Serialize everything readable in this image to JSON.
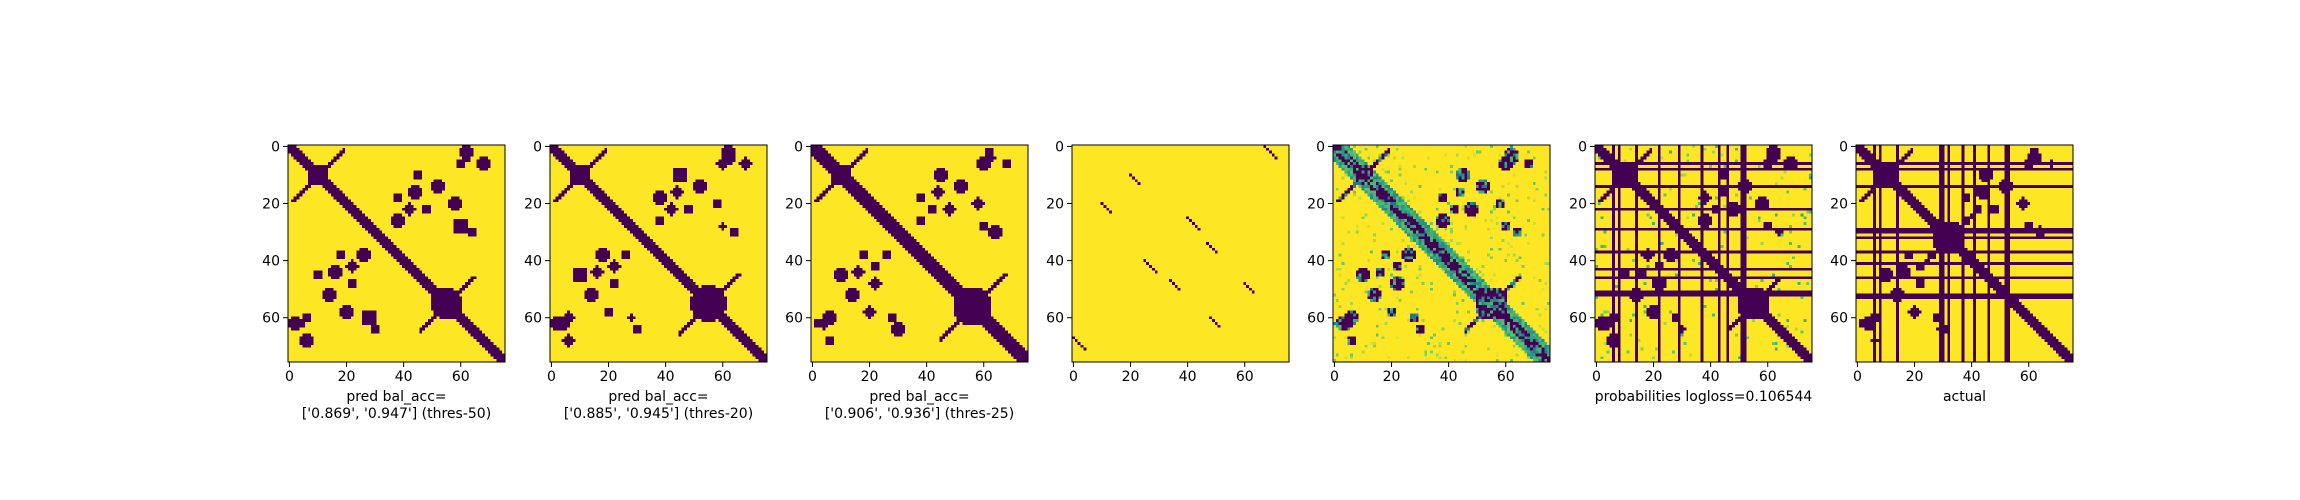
{
  "colors": {
    "low": "#440154",
    "high": "#fde725",
    "mid1": "#21918c",
    "mid2": "#5ec962"
  },
  "chart_data": [
    {
      "type": "heatmap",
      "matrix_size": 76,
      "xticks": [
        "0",
        "20",
        "40",
        "60"
      ],
      "yticks": [
        "0",
        "20",
        "40",
        "60"
      ],
      "caption": [
        "pred bal_acc=",
        "['0.869', '0.947'] (thres-50)"
      ],
      "pattern": "binary_pred",
      "params": {
        "diag_halfwidth": 2.2,
        "block_center": [
          55,
          55
        ],
        "block_radius": 5.5,
        "cross_arm": 9,
        "seed": 3
      }
    },
    {
      "type": "heatmap",
      "matrix_size": 76,
      "xticks": [
        "0",
        "20",
        "40",
        "60"
      ],
      "yticks": [
        "0",
        "20",
        "40",
        "60"
      ],
      "caption": [
        "pred bal_acc=",
        "['0.885', '0.945'] (thres-20)"
      ],
      "pattern": "binary_pred",
      "params": {
        "diag_halfwidth": 2.6,
        "block_center": [
          55,
          55
        ],
        "block_radius": 6.5,
        "cross_arm": 10,
        "seed": 5
      }
    },
    {
      "type": "heatmap",
      "matrix_size": 76,
      "xticks": [
        "0",
        "20",
        "40",
        "60"
      ],
      "yticks": [
        "0",
        "20",
        "40",
        "60"
      ],
      "caption": [
        "pred bal_acc=",
        "['0.906', '0.936'] (thres-25)"
      ],
      "pattern": "binary_pred",
      "params": {
        "diag_halfwidth": 3.0,
        "block_center": [
          56,
          56
        ],
        "block_radius": 7,
        "cross_arm": 11,
        "seed": 7
      }
    },
    {
      "type": "heatmap",
      "matrix_size": 76,
      "xticks": [
        "0",
        "20",
        "40",
        "60"
      ],
      "yticks": [
        "0",
        "20",
        "40",
        "60"
      ],
      "caption": [],
      "pattern": "sparse",
      "params": {
        "segments": [
          [
            0,
            67,
            5
          ],
          [
            10,
            20,
            4
          ],
          [
            20,
            10,
            4
          ],
          [
            25,
            40,
            5
          ],
          [
            40,
            25,
            5
          ],
          [
            48,
            60,
            4
          ],
          [
            60,
            48,
            4
          ],
          [
            67,
            0,
            5
          ],
          [
            34,
            47,
            4
          ],
          [
            47,
            34,
            4
          ]
        ]
      }
    },
    {
      "type": "heatmap",
      "matrix_size": 76,
      "xticks": [
        "0",
        "20",
        "40",
        "60"
      ],
      "yticks": [
        "0",
        "20",
        "40",
        "60"
      ],
      "caption": [],
      "pattern": "continuous",
      "params": {
        "seed": 11
      }
    },
    {
      "type": "heatmap",
      "matrix_size": 76,
      "xticks": [
        "0",
        "20",
        "40",
        "60"
      ],
      "yticks": [
        "0",
        "20",
        "40",
        "60"
      ],
      "caption": [
        "probabilities logloss=0.106544"
      ],
      "pattern": "stripes_soft",
      "params": {
        "stripes": [
          6,
          8,
          14,
          22,
          29,
          37,
          43,
          46,
          51,
          52
        ],
        "seed": 13
      }
    },
    {
      "type": "heatmap",
      "matrix_size": 76,
      "xticks": [
        "0",
        "20",
        "40",
        "60"
      ],
      "yticks": [
        "0",
        "20",
        "40",
        "60"
      ],
      "caption": [
        "actual"
      ],
      "pattern": "stripes_binary",
      "params": {
        "stripes": [
          6,
          8,
          14,
          29,
          30,
          32,
          37,
          41,
          46,
          52,
          53
        ],
        "block_center": [
          32,
          32
        ],
        "seed": 17
      }
    }
  ]
}
